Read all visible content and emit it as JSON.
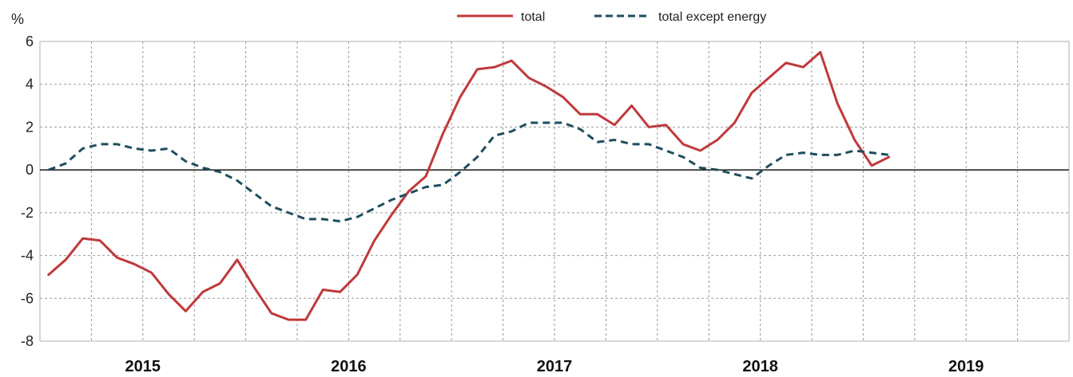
{
  "chart_data": {
    "type": "line",
    "ylabel": "%",
    "ylim": [
      -8,
      6
    ],
    "yticks": [
      6,
      4,
      2,
      0,
      -2,
      -4,
      -6,
      -8
    ],
    "year_labels": [
      "2015",
      "2016",
      "2017",
      "2018",
      "2019"
    ],
    "x_start": "2015-01",
    "x_end": "2019-12",
    "grid": true,
    "legend_position": "top-center",
    "series": [
      {
        "name": "total",
        "color": "#c0393b",
        "style": "solid",
        "x": [
          "2015-01",
          "2015-02",
          "2015-03",
          "2015-04",
          "2015-05",
          "2015-06",
          "2015-07",
          "2015-08",
          "2015-09",
          "2015-10",
          "2015-11",
          "2015-12",
          "2016-01",
          "2016-02",
          "2016-03",
          "2016-04",
          "2016-05",
          "2016-06",
          "2016-07",
          "2016-08",
          "2016-09",
          "2016-10",
          "2016-11",
          "2016-12",
          "2017-01",
          "2017-02",
          "2017-03",
          "2017-04",
          "2017-05",
          "2017-06",
          "2017-07",
          "2017-08",
          "2017-09",
          "2017-10",
          "2017-11",
          "2017-12",
          "2018-01",
          "2018-02",
          "2018-03",
          "2018-04",
          "2018-05",
          "2018-06",
          "2018-07",
          "2018-08",
          "2018-09",
          "2018-10",
          "2018-11",
          "2018-12",
          "2019-01",
          "2019-02"
        ],
        "values": [
          -4.9,
          -4.2,
          -3.2,
          -3.3,
          -4.1,
          -4.4,
          -4.8,
          -5.8,
          -6.6,
          -5.7,
          -5.3,
          -4.2,
          -5.5,
          -6.7,
          -7.0,
          -7.0,
          -5.6,
          -5.7,
          -4.9,
          -3.3,
          -2.1,
          -1.0,
          -0.3,
          1.7,
          3.4,
          4.7,
          4.8,
          5.1,
          4.3,
          3.9,
          3.4,
          2.6,
          2.6,
          2.1,
          3.0,
          2.0,
          2.1,
          1.2,
          0.9,
          1.4,
          2.2,
          3.6,
          4.3,
          5.0,
          4.8,
          5.5,
          3.1,
          1.4,
          0.2,
          0.6
        ]
      },
      {
        "name": "total except energy",
        "color": "#1f4e5f",
        "style": "dashed",
        "x": [
          "2015-01",
          "2015-02",
          "2015-03",
          "2015-04",
          "2015-05",
          "2015-06",
          "2015-07",
          "2015-08",
          "2015-09",
          "2015-10",
          "2015-11",
          "2015-12",
          "2016-01",
          "2016-02",
          "2016-03",
          "2016-04",
          "2016-05",
          "2016-06",
          "2016-07",
          "2016-08",
          "2016-09",
          "2016-10",
          "2016-11",
          "2016-12",
          "2017-01",
          "2017-02",
          "2017-03",
          "2017-04",
          "2017-05",
          "2017-06",
          "2017-07",
          "2017-08",
          "2017-09",
          "2017-10",
          "2017-11",
          "2017-12",
          "2018-01",
          "2018-02",
          "2018-03",
          "2018-04",
          "2018-05",
          "2018-06",
          "2018-07",
          "2018-08",
          "2018-09",
          "2018-10",
          "2018-11",
          "2018-12",
          "2019-01",
          "2019-02"
        ],
        "values": [
          0.0,
          0.3,
          1.0,
          1.2,
          1.2,
          1.0,
          0.9,
          1.0,
          0.4,
          0.1,
          -0.1,
          -0.5,
          -1.1,
          -1.7,
          -2.0,
          -2.3,
          -2.3,
          -2.4,
          -2.2,
          -1.8,
          -1.4,
          -1.1,
          -0.8,
          -0.7,
          -0.1,
          0.6,
          1.6,
          1.8,
          2.2,
          2.2,
          2.2,
          1.9,
          1.3,
          1.4,
          1.2,
          1.2,
          0.9,
          0.6,
          0.1,
          0.0,
          -0.2,
          -0.4,
          0.2,
          0.7,
          0.8,
          0.7,
          0.7,
          0.9,
          0.8,
          0.7
        ]
      }
    ]
  }
}
